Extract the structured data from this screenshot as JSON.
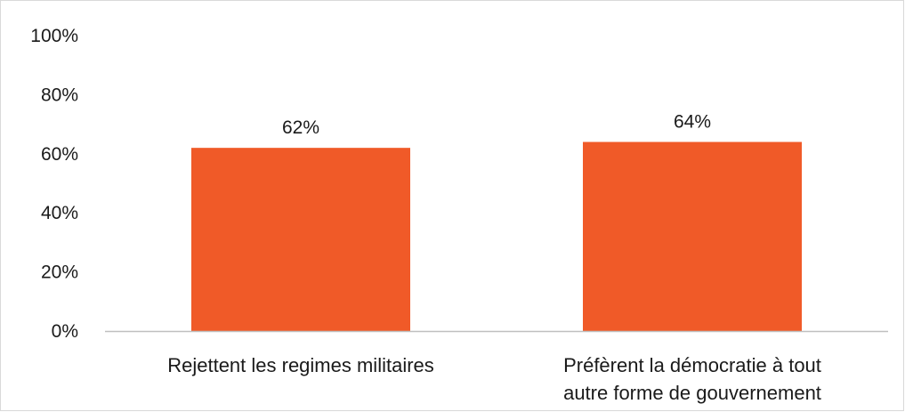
{
  "chart_data": {
    "type": "bar",
    "categories": [
      [
        "Rejettent les regimes militaires"
      ],
      [
        "Préfèrent la démocratie à tout",
        "autre forme de gouvernement"
      ]
    ],
    "values": [
      62,
      64
    ],
    "data_labels": [
      "62%",
      "64%"
    ],
    "y_ticks": [
      {
        "value": 0,
        "label": "0%"
      },
      {
        "value": 20,
        "label": "20%"
      },
      {
        "value": 40,
        "label": "40%"
      },
      {
        "value": 60,
        "label": "60%"
      },
      {
        "value": 80,
        "label": "80%"
      },
      {
        "value": 100,
        "label": "100%"
      }
    ],
    "ylim": [
      0,
      100
    ],
    "title": "",
    "xlabel": "",
    "ylabel": "",
    "grid": false,
    "legend": "none",
    "bar_color": "#f05a28",
    "axis_color": "#bfbfbf"
  }
}
